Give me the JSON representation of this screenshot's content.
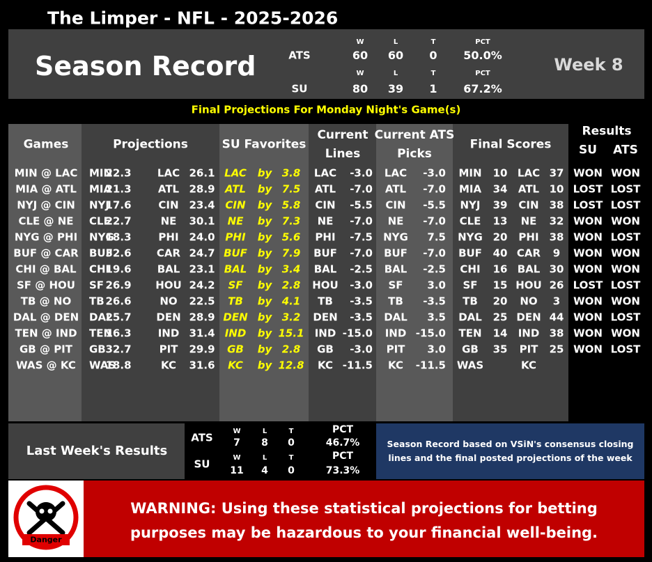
{
  "header": {
    "title": "The Limper - NFL - 2025-2026",
    "heading": "Season Record",
    "week": "Week 8"
  },
  "season_record": [
    {
      "label": "ATS",
      "columns": [
        "W",
        "L",
        "T",
        "PCT"
      ],
      "values": [
        "60",
        "60",
        "0",
        "50.0%"
      ]
    },
    {
      "label": "SU",
      "columns": [
        "W",
        "L",
        "T",
        "PCT"
      ],
      "values": [
        "80",
        "39",
        "1",
        "67.2%"
      ]
    }
  ],
  "banner": "Final Projections For Monday Night's Game(s)",
  "table": {
    "headers": [
      "Games",
      "Projections",
      "SU Favorites",
      "Current Lines",
      "Current ATS Picks",
      "Final Scores",
      "Results"
    ],
    "results_subheaders": [
      "SU",
      "ATS"
    ],
    "rows": [
      {
        "game": "MIN @ LAC",
        "projections": [
          "MIN",
          "22.3",
          "LAC",
          "26.1"
        ],
        "favorite": [
          "LAC",
          "by",
          "3.8"
        ],
        "line": [
          "LAC",
          "-3.0"
        ],
        "pick": [
          "LAC",
          "-3.0"
        ],
        "final": [
          "MIN",
          "10",
          "LAC",
          "37"
        ],
        "results": [
          "WON",
          "WON"
        ]
      },
      {
        "game": "MIA @ ATL",
        "projections": [
          "MIA",
          "21.3",
          "ATL",
          "28.9"
        ],
        "favorite": [
          "ATL",
          "by",
          "7.5"
        ],
        "line": [
          "ATL",
          "-7.0"
        ],
        "pick": [
          "ATL",
          "-7.0"
        ],
        "final": [
          "MIA",
          "34",
          "ATL",
          "10"
        ],
        "results": [
          "LOST",
          "LOST"
        ]
      },
      {
        "game": "NYJ @ CIN",
        "projections": [
          "NYJ",
          "17.6",
          "CIN",
          "23.4"
        ],
        "favorite": [
          "CIN",
          "by",
          "5.8"
        ],
        "line": [
          "CIN",
          "-5.5"
        ],
        "pick": [
          "CIN",
          "-5.5"
        ],
        "final": [
          "NYJ",
          "39",
          "CIN",
          "38"
        ],
        "results": [
          "LOST",
          "LOST"
        ]
      },
      {
        "game": "CLE @ NE",
        "projections": [
          "CLE",
          "22.7",
          "NE",
          "30.1"
        ],
        "favorite": [
          "NE",
          "by",
          "7.3"
        ],
        "line": [
          "NE",
          "-7.0"
        ],
        "pick": [
          "NE",
          "-7.0"
        ],
        "final": [
          "CLE",
          "13",
          "NE",
          "32"
        ],
        "results": [
          "WON",
          "WON"
        ]
      },
      {
        "game": "NYG @ PHI",
        "projections": [
          "NYG",
          "18.3",
          "PHI",
          "24.0"
        ],
        "favorite": [
          "PHI",
          "by",
          "5.6"
        ],
        "line": [
          "PHI",
          "-7.5"
        ],
        "pick": [
          "NYG",
          "7.5"
        ],
        "final": [
          "NYG",
          "20",
          "PHI",
          "38"
        ],
        "results": [
          "WON",
          "LOST"
        ]
      },
      {
        "game": "BUF @ CAR",
        "projections": [
          "BUF",
          "32.6",
          "CAR",
          "24.7"
        ],
        "favorite": [
          "BUF",
          "by",
          "7.9"
        ],
        "line": [
          "BUF",
          "-7.0"
        ],
        "pick": [
          "BUF",
          "-7.0"
        ],
        "final": [
          "BUF",
          "40",
          "CAR",
          "9"
        ],
        "results": [
          "WON",
          "WON"
        ]
      },
      {
        "game": "CHI @ BAL",
        "projections": [
          "CHI",
          "19.6",
          "BAL",
          "23.1"
        ],
        "favorite": [
          "BAL",
          "by",
          "3.4"
        ],
        "line": [
          "BAL",
          "-2.5"
        ],
        "pick": [
          "BAL",
          "-2.5"
        ],
        "final": [
          "CHI",
          "16",
          "BAL",
          "30"
        ],
        "results": [
          "WON",
          "WON"
        ]
      },
      {
        "game": "SF @ HOU",
        "projections": [
          "SF",
          "26.9",
          "HOU",
          "24.2"
        ],
        "favorite": [
          "SF",
          "by",
          "2.8"
        ],
        "line": [
          "HOU",
          "-3.0"
        ],
        "pick": [
          "SF",
          "3.0"
        ],
        "final": [
          "SF",
          "15",
          "HOU",
          "26"
        ],
        "results": [
          "LOST",
          "LOST"
        ]
      },
      {
        "game": "TB @ NO",
        "projections": [
          "TB",
          "26.6",
          "NO",
          "22.5"
        ],
        "favorite": [
          "TB",
          "by",
          "4.1"
        ],
        "line": [
          "TB",
          "-3.5"
        ],
        "pick": [
          "TB",
          "-3.5"
        ],
        "final": [
          "TB",
          "20",
          "NO",
          "3"
        ],
        "results": [
          "WON",
          "WON"
        ]
      },
      {
        "game": "DAL @ DEN",
        "projections": [
          "DAL",
          "25.7",
          "DEN",
          "28.9"
        ],
        "favorite": [
          "DEN",
          "by",
          "3.2"
        ],
        "line": [
          "DEN",
          "-3.5"
        ],
        "pick": [
          "DAL",
          "3.5"
        ],
        "final": [
          "DAL",
          "25",
          "DEN",
          "44"
        ],
        "results": [
          "WON",
          "LOST"
        ]
      },
      {
        "game": "TEN @ IND",
        "projections": [
          "TEN",
          "16.3",
          "IND",
          "31.4"
        ],
        "favorite": [
          "IND",
          "by",
          "15.1"
        ],
        "line": [
          "IND",
          "-15.0"
        ],
        "pick": [
          "IND",
          "-15.0"
        ],
        "final": [
          "TEN",
          "14",
          "IND",
          "38"
        ],
        "results": [
          "WON",
          "WON"
        ]
      },
      {
        "game": "GB @ PIT",
        "projections": [
          "GB",
          "32.7",
          "PIT",
          "29.9"
        ],
        "favorite": [
          "GB",
          "by",
          "2.8"
        ],
        "line": [
          "GB",
          "-3.0"
        ],
        "pick": [
          "PIT",
          "3.0"
        ],
        "final": [
          "GB",
          "35",
          "PIT",
          "25"
        ],
        "results": [
          "WON",
          "LOST"
        ]
      },
      {
        "game": "WAS @ KC",
        "projections": [
          "WAS",
          "18.8",
          "KC",
          "31.6"
        ],
        "favorite": [
          "KC",
          "by",
          "12.8"
        ],
        "line": [
          "KC",
          "-11.5"
        ],
        "pick": [
          "KC",
          "-11.5"
        ],
        "final": [
          "WAS",
          null,
          "KC",
          null
        ],
        "results": null
      }
    ]
  },
  "last_week": {
    "title": "Last Week's Results",
    "records": [
      {
        "label": "ATS",
        "columns": [
          "W",
          "L",
          "T",
          "PCT"
        ],
        "values": [
          "7",
          "8",
          "0",
          "46.7%"
        ]
      },
      {
        "label": "SU",
        "columns": [
          "W",
          "L",
          "T",
          "PCT"
        ],
        "values": [
          "11",
          "4",
          "0",
          "73.3%"
        ]
      }
    ],
    "note": "Season Record based on VSiN's consensus closing lines and the final posted projections of the week"
  },
  "warning": {
    "icon_label": "Danger",
    "text": "WARNING: Using these statistical projections for betting purposes may be hazardous to your financial well-being."
  }
}
